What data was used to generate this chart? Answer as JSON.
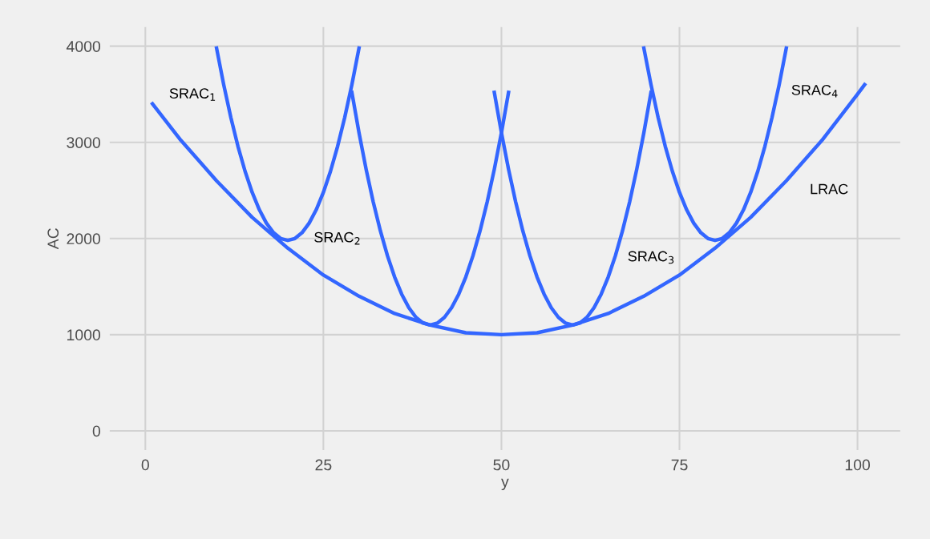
{
  "chart_data": {
    "type": "line",
    "xlabel": "y",
    "ylabel": "AC",
    "xlim": [
      -5,
      106
    ],
    "ylim": [
      -200,
      4200
    ],
    "xticks": [
      0,
      25,
      50,
      75,
      100
    ],
    "yticks": [
      0,
      1000,
      2000,
      3000,
      4000
    ],
    "grid": true,
    "legend": false,
    "series": [
      {
        "color": "#3366ff",
        "x": [
          1,
          5,
          10,
          15,
          20,
          25,
          30,
          35,
          40,
          45,
          50,
          55,
          60,
          65,
          70,
          75,
          80,
          85,
          90,
          95,
          100,
          101
        ],
        "values": [
          3400,
          3020,
          2600,
          2220,
          1900,
          1620,
          1400,
          1220,
          1100,
          1020,
          1000,
          1020,
          1100,
          1220,
          1400,
          1620,
          1900,
          2220,
          2600,
          3020,
          3500,
          3600
        ]
      },
      {
        "color": "#3366ff",
        "x": [
          10,
          11,
          12,
          13,
          14,
          15,
          16,
          17,
          18,
          19,
          20,
          21,
          22,
          23,
          24,
          25,
          26,
          27,
          28,
          29,
          30
        ],
        "values": [
          3980,
          3600,
          3260,
          2960,
          2700,
          2480,
          2300,
          2160,
          2060,
          2000,
          1980,
          2000,
          2060,
          2160,
          2300,
          2480,
          2700,
          2960,
          3260,
          3600,
          3980
        ]
      },
      {
        "color": "#3366ff",
        "x": [
          29,
          30,
          31,
          32,
          33,
          34,
          35,
          36,
          37,
          38,
          39,
          40,
          41,
          42,
          43,
          44,
          45,
          46,
          47,
          48,
          49,
          50,
          51
        ],
        "values": [
          3520,
          3100,
          2720,
          2380,
          2080,
          1820,
          1600,
          1420,
          1280,
          1180,
          1120,
          1100,
          1120,
          1180,
          1280,
          1420,
          1600,
          1820,
          2080,
          2380,
          2720,
          3100,
          3520
        ]
      },
      {
        "color": "#3366ff",
        "x": [
          49,
          50,
          51,
          52,
          53,
          54,
          55,
          56,
          57,
          58,
          59,
          60,
          61,
          62,
          63,
          64,
          65,
          66,
          67,
          68,
          69,
          70,
          71
        ],
        "values": [
          3520,
          3100,
          2720,
          2380,
          2080,
          1820,
          1600,
          1420,
          1280,
          1180,
          1120,
          1100,
          1120,
          1180,
          1280,
          1420,
          1600,
          1820,
          2080,
          2380,
          2720,
          3100,
          3520
        ]
      },
      {
        "color": "#3366ff",
        "x": [
          70,
          71,
          72,
          73,
          74,
          75,
          76,
          77,
          78,
          79,
          80,
          81,
          82,
          83,
          84,
          85,
          86,
          87,
          88,
          89,
          90
        ],
        "values": [
          3980,
          3600,
          3260,
          2960,
          2700,
          2480,
          2300,
          2160,
          2060,
          2000,
          1980,
          2000,
          2060,
          2160,
          2300,
          2480,
          2700,
          2960,
          3260,
          3600,
          3980
        ]
      }
    ],
    "annotations": [
      "SRAC$_{1}$",
      "SRAC$_{2}$",
      "SRAC$_{3}$",
      "SRAC$_{4}$",
      "LRAC"
    ]
  }
}
